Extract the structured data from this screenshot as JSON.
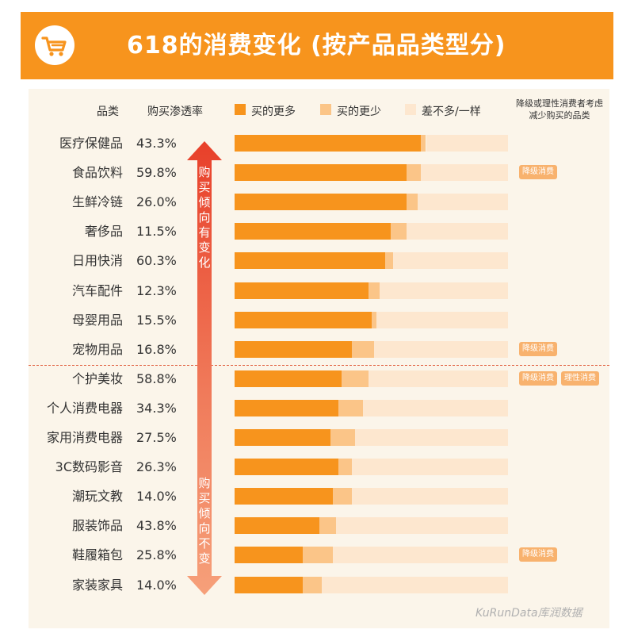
{
  "title": "618的消费变化 (按产品品类型分)",
  "headers": {
    "category": "品类",
    "rate": "购买渗透率",
    "note": "降级或理性消费者考虑减少购买的品类"
  },
  "legend": [
    {
      "label": "买的更多",
      "color": "#f7941d"
    },
    {
      "label": "买的更少",
      "color": "#fbc588"
    },
    {
      "label": "差不多/一样",
      "color": "#fde7cf"
    }
  ],
  "arrow_labels": {
    "upper": "购买倾向有变化",
    "lower": "购买倾向不变"
  },
  "tags": {
    "downgrade": "降级消费",
    "rational": "理性消费"
  },
  "watermark": "KuRunData库润数据",
  "colors": {
    "accent": "#f7941d",
    "less": "#fbc588",
    "same": "#fde7cf",
    "arrow_top": "#e8402a",
    "arrow_bottom": "#f6a07a"
  },
  "icons": {
    "banner": "shopping-cart-icon"
  },
  "chart_data": {
    "type": "bar",
    "orientation": "horizontal",
    "stacked": true,
    "percent_stacked": true,
    "title": "618的消费变化 (按产品品类型分)",
    "categories": [
      "医疗保健品",
      "食品饮料",
      "生鲜冷链",
      "奢侈品",
      "日用快消",
      "汽车配件",
      "母婴用品",
      "宠物用品",
      "个护美妆",
      "个人消费电器",
      "家用消费电器",
      "3C数码影音",
      "潮玩文教",
      "服装饰品",
      "鞋履箱包",
      "家装家具"
    ],
    "penetration": [
      "43.3%",
      "59.8%",
      "26.0%",
      "11.5%",
      "60.3%",
      "12.3%",
      "15.5%",
      "16.8%",
      "58.8%",
      "34.3%",
      "27.5%",
      "26.3%",
      "14.0%",
      "43.8%",
      "25.8%",
      "14.0%"
    ],
    "series": [
      {
        "name": "买的更多",
        "values": [
          68,
          63,
          63,
          57,
          55,
          49,
          50,
          43,
          39,
          38,
          35,
          38,
          36,
          31,
          25,
          25
        ]
      },
      {
        "name": "买的更少",
        "values": [
          2,
          5,
          4,
          6,
          3,
          4,
          2,
          8,
          10,
          9,
          9,
          5,
          7,
          6,
          11,
          7
        ]
      },
      {
        "name": "差不多/一样",
        "values": [
          30,
          32,
          33,
          37,
          42,
          47,
          48,
          49,
          51,
          53,
          56,
          57,
          57,
          63,
          64,
          68
        ]
      }
    ],
    "tags": [
      [],
      [
        "降级消费"
      ],
      [],
      [],
      [],
      [],
      [],
      [
        "降级消费"
      ],
      [
        "降级消费",
        "理性消费"
      ],
      [],
      [],
      [],
      [],
      [],
      [
        "降级消费"
      ],
      []
    ],
    "groups": [
      {
        "label": "购买倾向有变化",
        "count": 8
      },
      {
        "label": "购买倾向不变",
        "count": 8
      }
    ],
    "xlim": [
      0,
      100
    ]
  }
}
